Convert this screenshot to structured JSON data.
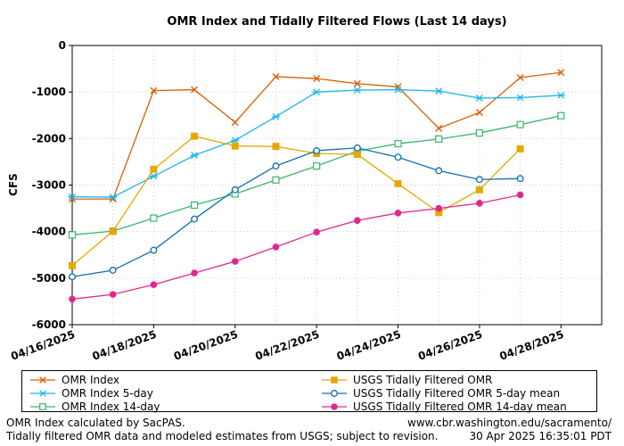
{
  "chart_data": {
    "type": "line",
    "title": "OMR Index and Tidally Filtered Flows (Last 14 days)",
    "xlabel": "",
    "ylabel": "CFS",
    "ylim": [
      -6000,
      0
    ],
    "yticks": [
      0,
      -1000,
      -2000,
      -3000,
      -4000,
      -5000,
      -6000
    ],
    "yticklabels": [
      "0",
      "-1000",
      "-2000",
      "-3000",
      "-4000",
      "-5000",
      "-6000"
    ],
    "xlim": [
      "2025-04-16",
      "2025-04-29"
    ],
    "xticks": [
      "2025-04-16",
      "2025-04-18",
      "2025-04-20",
      "2025-04-22",
      "2025-04-24",
      "2025-04-26",
      "2025-04-28"
    ],
    "xticklabels": [
      "04/16/2025",
      "04/18/2025",
      "04/20/2025",
      "04/22/2025",
      "04/24/2025",
      "04/26/2025",
      "04/28/2025"
    ],
    "x": [
      "2025-04-16",
      "2025-04-17",
      "2025-04-18",
      "2025-04-19",
      "2025-04-20",
      "2025-04-21",
      "2025-04-22",
      "2025-04-23",
      "2025-04-24",
      "2025-04-25",
      "2025-04-26",
      "2025-04-27",
      "2025-04-28"
    ],
    "grid": true,
    "legend_position": "bottom",
    "series": [
      {
        "name": "OMR Index",
        "color": "#d95f02",
        "marker": "x",
        "values": [
          -3300,
          -3300,
          -970,
          -950,
          -1650,
          -670,
          -710,
          -820,
          -890,
          -1780,
          -1440,
          -690,
          -580
        ]
      },
      {
        "name": "OMR Index 5-day",
        "color": "#1fb8e8",
        "marker": "star",
        "values": [
          -3250,
          -3260,
          -2810,
          -2360,
          -2040,
          -1530,
          -1000,
          -960,
          -950,
          -980,
          -1130,
          -1120,
          -1070
        ]
      },
      {
        "name": "OMR Index 14-day",
        "color": "#3cb46e",
        "marker": "square-open",
        "values": [
          -4070,
          -3990,
          -3710,
          -3430,
          -3190,
          -2890,
          -2590,
          -2270,
          -2110,
          -2010,
          -1880,
          -1700,
          -1510
        ]
      },
      {
        "name": "USGS Tidally Filtered OMR",
        "color": "#e6a800",
        "marker": "square-filled",
        "values": [
          -4730,
          -3990,
          -2660,
          -1950,
          -2160,
          -2170,
          -2320,
          -2340,
          -2970,
          -3590,
          -3100,
          -2220,
          null
        ]
      },
      {
        "name": "USGS Tidally Filtered OMR 5-day mean",
        "color": "#0f6faf",
        "marker": "circle-open",
        "values": [
          -4970,
          -4830,
          -4400,
          -3730,
          -3100,
          -2590,
          -2260,
          -2200,
          -2400,
          -2690,
          -2880,
          -2860,
          null
        ]
      },
      {
        "name": "USGS Tidally Filtered OMR 14-day mean",
        "color": "#e0288c",
        "marker": "circle-filled",
        "values": [
          -5450,
          -5350,
          -5140,
          -4890,
          -4640,
          -4330,
          -4010,
          -3760,
          -3600,
          -3500,
          -3390,
          -3210,
          null
        ]
      }
    ]
  },
  "footer": {
    "left_line1": "OMR Index calculated by SacPAS.",
    "left_line2": "Tidally filtered OMR data and modeled estimates from USGS; subject to revision.",
    "right_line1": "www.cbr.washington.edu/sacramento/",
    "right_line2": "30 Apr 2025 16:35:01 PDT"
  }
}
